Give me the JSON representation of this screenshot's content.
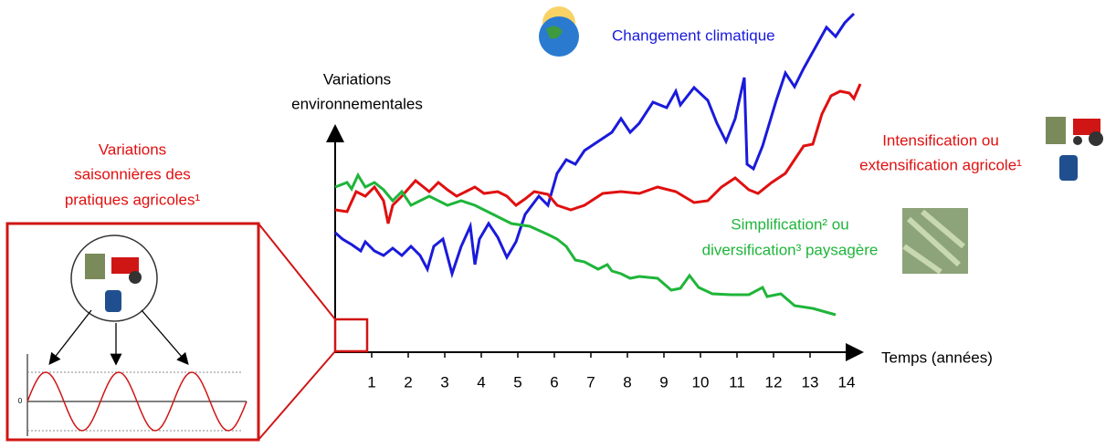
{
  "y_axis_label": [
    "Variations",
    "environnementales"
  ],
  "x_axis_label": "Temps (années)",
  "x_ticks": [
    "1",
    "2",
    "3",
    "4",
    "5",
    "6",
    "7",
    "8",
    "9",
    "10",
    "11",
    "12",
    "13",
    "14"
  ],
  "curves": [
    {
      "label": [
        "Changement climatique"
      ]
    },
    {
      "label": [
        "Intensification ou",
        "extensification agricole¹"
      ]
    },
    {
      "label": [
        "Simplification² ou",
        "diversification³ paysagère"
      ]
    }
  ],
  "inset": {
    "title": [
      "Variations",
      "saisonnières des",
      "pratiques agricoles¹"
    ],
    "zero_label": "0"
  }
}
